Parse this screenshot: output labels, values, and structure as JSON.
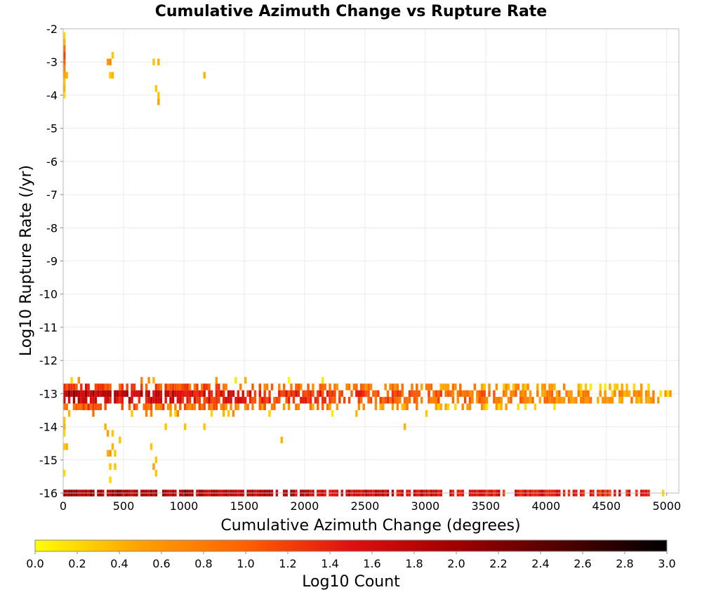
{
  "chart_data": {
    "type": "heatmap",
    "title": "Cumulative Azimuth Change vs Rupture Rate",
    "xlabel": "Cumulative Azimuth Change (degrees)",
    "ylabel": "Log10 Rupture Rate (/yr)",
    "xlim": [
      0,
      5100
    ],
    "ylim": [
      -16,
      -2
    ],
    "x_ticks": [
      "0",
      "500",
      "1000",
      "1500",
      "2000",
      "2500",
      "3000",
      "3500",
      "4000",
      "4500",
      "5000"
    ],
    "y_ticks": [
      "-2",
      "-3",
      "-4",
      "-5",
      "-6",
      "-7",
      "-8",
      "-9",
      "-10",
      "-11",
      "-12",
      "-13",
      "-14",
      "-15",
      "-16"
    ],
    "grid": true,
    "colorbar": {
      "label": "Log10 Count",
      "min": 0.0,
      "max": 3.0,
      "ticks": [
        "0.0",
        "0.2",
        "0.4",
        "0.6",
        "0.8",
        "1.0",
        "1.2",
        "1.4",
        "1.6",
        "1.8",
        "2.0",
        "2.2",
        "2.4",
        "2.6",
        "2.8",
        "3.0"
      ],
      "colors": [
        "#ffff00",
        "#ffa000",
        "#ff6000",
        "#e01010",
        "#a00000",
        "#500000",
        "#000000"
      ]
    },
    "cell_size": {
      "dx": 20,
      "dy": 0.2
    },
    "bands": [
      {
        "x_start": 0,
        "x_end": 4860,
        "y": -16.0,
        "value_start": 2.0,
        "value_end": 1.4,
        "density": 0.97
      },
      {
        "x_start": 0,
        "x_end": 5060,
        "y": -13.0,
        "value_start": 1.9,
        "value_end": 0.4,
        "density": 0.85
      },
      {
        "x_start": 0,
        "x_end": 4950,
        "y": -13.2,
        "value_start": 1.7,
        "value_end": 0.5,
        "density": 0.8
      },
      {
        "x_start": 0,
        "x_end": 4850,
        "y": -12.8,
        "value_start": 1.3,
        "value_end": 0.3,
        "density": 0.6
      },
      {
        "x_start": 0,
        "x_end": 4100,
        "y": -13.4,
        "value_start": 1.1,
        "value_end": 0.3,
        "density": 0.55
      },
      {
        "x_start": 0,
        "x_end": 2400,
        "y": -12.6,
        "value_start": 0.5,
        "value_end": 0.2,
        "density": 0.12
      },
      {
        "x_start": 0,
        "x_end": 3100,
        "y": -13.6,
        "value_start": 0.6,
        "value_end": 0.2,
        "density": 0.15
      }
    ],
    "cells": [
      {
        "x": 0,
        "y": -2.2,
        "v": 0.2
      },
      {
        "x": 0,
        "y": -2.4,
        "v": 0.4
      },
      {
        "x": 0,
        "y": -2.6,
        "v": 0.9
      },
      {
        "x": 0,
        "y": -2.8,
        "v": 1.2
      },
      {
        "x": 0,
        "y": -3.0,
        "v": 1.0
      },
      {
        "x": 0,
        "y": -3.2,
        "v": 0.7
      },
      {
        "x": 0,
        "y": -3.4,
        "v": 0.5
      },
      {
        "x": 0,
        "y": -3.6,
        "v": 0.3
      },
      {
        "x": 0,
        "y": -3.8,
        "v": 0.4
      },
      {
        "x": 0,
        "y": -4.0,
        "v": 0.2
      },
      {
        "x": 20,
        "y": -3.4,
        "v": 0.4
      },
      {
        "x": 360,
        "y": -3.0,
        "v": 0.5
      },
      {
        "x": 380,
        "y": -3.0,
        "v": 0.7
      },
      {
        "x": 380,
        "y": -3.4,
        "v": 0.3
      },
      {
        "x": 400,
        "y": -3.4,
        "v": 0.4
      },
      {
        "x": 400,
        "y": -2.8,
        "v": 0.3
      },
      {
        "x": 740,
        "y": -3.0,
        "v": 0.3
      },
      {
        "x": 780,
        "y": -3.0,
        "v": 0.4
      },
      {
        "x": 760,
        "y": -3.8,
        "v": 0.3
      },
      {
        "x": 780,
        "y": -4.0,
        "v": 0.3
      },
      {
        "x": 780,
        "y": -4.2,
        "v": 0.5
      },
      {
        "x": 1160,
        "y": -3.4,
        "v": 0.4
      },
      {
        "x": 0,
        "y": -13.8,
        "v": 0.3
      },
      {
        "x": 0,
        "y": -14.0,
        "v": 0.4
      },
      {
        "x": 0,
        "y": -14.2,
        "v": 0.2
      },
      {
        "x": 0,
        "y": -14.6,
        "v": 0.3
      },
      {
        "x": 20,
        "y": -14.6,
        "v": 0.4
      },
      {
        "x": 0,
        "y": -15.4,
        "v": 0.2
      },
      {
        "x": 340,
        "y": -14.0,
        "v": 0.4
      },
      {
        "x": 360,
        "y": -14.2,
        "v": 0.5
      },
      {
        "x": 360,
        "y": -14.8,
        "v": 0.4
      },
      {
        "x": 380,
        "y": -14.8,
        "v": 0.6
      },
      {
        "x": 380,
        "y": -15.2,
        "v": 0.3
      },
      {
        "x": 400,
        "y": -14.2,
        "v": 0.3
      },
      {
        "x": 400,
        "y": -14.6,
        "v": 0.4
      },
      {
        "x": 420,
        "y": -14.8,
        "v": 0.3
      },
      {
        "x": 420,
        "y": -15.2,
        "v": 0.3
      },
      {
        "x": 380,
        "y": -15.6,
        "v": 0.2
      },
      {
        "x": 460,
        "y": -14.4,
        "v": 0.3
      },
      {
        "x": 720,
        "y": -14.6,
        "v": 0.3
      },
      {
        "x": 740,
        "y": -15.2,
        "v": 0.5
      },
      {
        "x": 760,
        "y": -15.0,
        "v": 0.3
      },
      {
        "x": 760,
        "y": -15.4,
        "v": 0.3
      },
      {
        "x": 840,
        "y": -14.0,
        "v": 0.3
      },
      {
        "x": 1000,
        "y": -14.0,
        "v": 0.3
      },
      {
        "x": 1160,
        "y": -14.0,
        "v": 0.3
      },
      {
        "x": 1800,
        "y": -14.4,
        "v": 0.4
      },
      {
        "x": 2820,
        "y": -14.0,
        "v": 0.4
      },
      {
        "x": 4960,
        "y": -16.0,
        "v": 0.2
      }
    ]
  }
}
